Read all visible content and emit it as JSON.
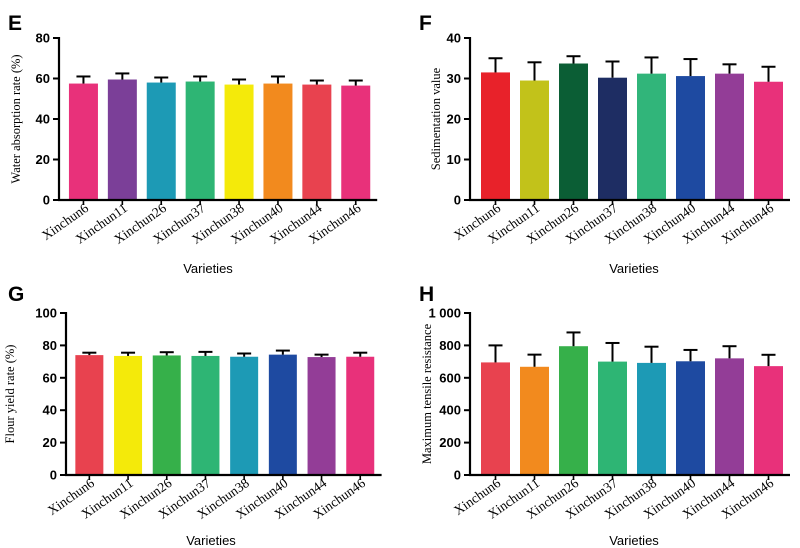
{
  "chart_data": [
    {
      "panel": "E",
      "type": "bar",
      "ylabel": "Water absorption rate (%)",
      "xlabel": "Varieties",
      "ylim": [
        0,
        80
      ],
      "yticks": [
        "0",
        "20",
        "40",
        "60",
        "80"
      ],
      "categories": [
        "Xinchun6",
        "Xinchun11",
        "Xinchun26",
        "Xinchun37",
        "Xinchun38",
        "Xinchun40",
        "Xinchun44",
        "Xinchun46"
      ],
      "values": [
        57.5,
        59.5,
        58,
        58.5,
        57,
        57.5,
        57,
        56.5
      ],
      "errors": [
        3.5,
        3,
        2.5,
        2.5,
        2.5,
        3.5,
        2,
        2.5
      ],
      "colors": [
        "#e8317a",
        "#7b3f98",
        "#1d9ab5",
        "#2eb574",
        "#f4ea0a",
        "#f28a1e",
        "#e8424f",
        "#e8317a"
      ]
    },
    {
      "panel": "F",
      "type": "bar",
      "ylabel": "Sedimentation value",
      "xlabel": "Varieties",
      "ylim": [
        0,
        40
      ],
      "yticks": [
        "0",
        "10",
        "20",
        "30",
        "40"
      ],
      "categories": [
        "Xinchun6",
        "Xinchun11",
        "Xinchun26",
        "Xinchun37",
        "Xinchun38",
        "Xinchun40",
        "Xinchun44",
        "Xinchun46"
      ],
      "values": [
        31.5,
        29.5,
        33.7,
        30.2,
        31.2,
        30.6,
        31.2,
        29.2
      ],
      "errors": [
        3.5,
        4.5,
        1.8,
        4,
        4,
        4.2,
        2.3,
        3.7
      ],
      "colors": [
        "#e8222a",
        "#c2c21a",
        "#0b5e35",
        "#1e2d63",
        "#31b57a",
        "#1e4aa1",
        "#933d97",
        "#e8317a"
      ]
    },
    {
      "panel": "G",
      "type": "bar",
      "ylabel": "Flour yield rate (%)",
      "xlabel": "Varieties",
      "ylim": [
        0,
        100
      ],
      "yticks": [
        "0",
        "20",
        "40",
        "60",
        "80",
        "100"
      ],
      "categories": [
        "Xinchun6",
        "Xinchun11",
        "Xinchun26",
        "Xinchun37",
        "Xinchun38",
        "Xinchun40",
        "Xinchun44",
        "Xinchun46"
      ],
      "values": [
        74,
        73.5,
        73.8,
        73.5,
        73,
        74.3,
        72.8,
        73
      ],
      "errors": [
        1.5,
        2,
        2,
        2.5,
        2,
        2.5,
        1.5,
        2.5
      ],
      "colors": [
        "#e8424f",
        "#f4ea0a",
        "#36b04a",
        "#2eb574",
        "#1d9ab5",
        "#1e4aa1",
        "#933d97",
        "#e8317a"
      ]
    },
    {
      "panel": "H",
      "type": "bar",
      "ylabel": "Maximum tensile resistance",
      "xlabel": "Varieties",
      "ylim": [
        0,
        1000
      ],
      "yticks": [
        "0",
        "200",
        "400",
        "600",
        "800",
        "1 000"
      ],
      "categories": [
        "Xinchun6",
        "Xinchun11",
        "Xinchun26",
        "Xinchun37",
        "Xinchun38",
        "Xinchun40",
        "Xinchun44",
        "Xinchun46"
      ],
      "values": [
        695,
        668,
        795,
        700,
        692,
        702,
        720,
        672
      ],
      "errors": [
        105,
        75,
        85,
        115,
        100,
        70,
        75,
        70
      ],
      "colors": [
        "#e8424f",
        "#f28a1e",
        "#36b04a",
        "#2eb574",
        "#1d9ab5",
        "#1e4aa1",
        "#933d97",
        "#e8317a"
      ]
    }
  ]
}
